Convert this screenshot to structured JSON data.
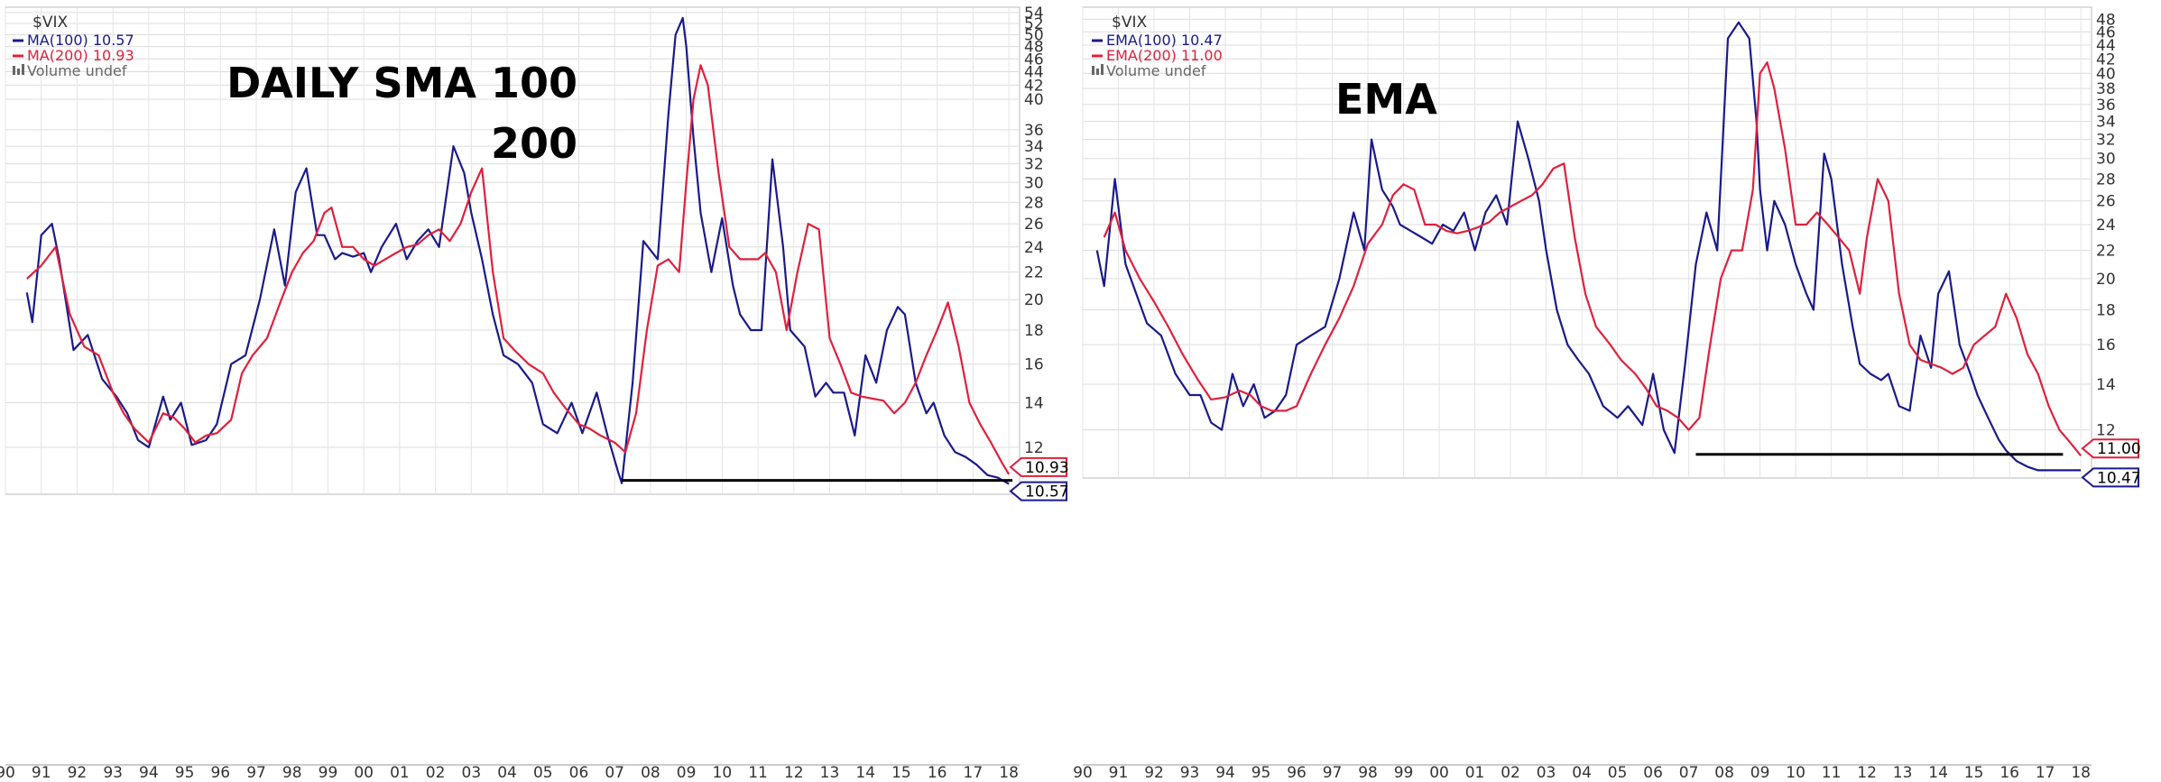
{
  "charts": [
    {
      "symbol": "$VIX",
      "legend": [
        {
          "label": "MA(100) 10.57",
          "color": "#1a1a8c"
        },
        {
          "label": "MA(200) 10.93",
          "color": "#e0203c"
        },
        {
          "label": "Volume undef",
          "color": "#666666"
        }
      ],
      "annotation_lines": [
        "DAILY SMA 100",
        "200"
      ],
      "price_tags": [
        {
          "value": 10.93,
          "label": "10.93",
          "color": "#e0203c"
        },
        {
          "value": 10.57,
          "label": "10.57",
          "color": "#1a1a8c"
        }
      ]
    },
    {
      "symbol": "$VIX",
      "legend": [
        {
          "label": "EMA(100) 10.47",
          "color": "#1a1a8c"
        },
        {
          "label": "EMA(200) 11.00",
          "color": "#e0203c"
        },
        {
          "label": "Volume undef",
          "color": "#666666"
        }
      ],
      "annotation_lines": [
        "EMA"
      ],
      "price_tags": [
        {
          "value": 11.0,
          "label": "11.00",
          "color": "#e0203c"
        },
        {
          "value": 10.47,
          "label": "10.47",
          "color": "#1a1a8c"
        }
      ]
    }
  ],
  "chart_data": [
    {
      "type": "line",
      "title": "$VIX",
      "yscale": "log",
      "ylim": [
        10.2,
        55
      ],
      "xlim": [
        90,
        118.3
      ],
      "xticks": [
        "90",
        "91",
        "92",
        "93",
        "94",
        "95",
        "96",
        "97",
        "98",
        "99",
        "00",
        "01",
        "02",
        "03",
        "04",
        "05",
        "06",
        "07",
        "08",
        "09",
        "10",
        "11",
        "12",
        "13",
        "14",
        "15",
        "16",
        "17",
        "18"
      ],
      "yticks": [
        12,
        14,
        16,
        18,
        20,
        22,
        24,
        26,
        28,
        30,
        32,
        34,
        36,
        40,
        42,
        44,
        46,
        48,
        50,
        52,
        54
      ],
      "grid": true,
      "support_line": {
        "from": 107.2,
        "to": 118.1,
        "value": 10.7
      },
      "series": [
        {
          "name": "MA(100)",
          "color": "#1a1a8c",
          "x": [
            90.6,
            90.75,
            91.0,
            91.3,
            91.5,
            91.9,
            92.3,
            92.7,
            93.1,
            93.4,
            93.7,
            94.0,
            94.4,
            94.6,
            94.9,
            95.2,
            95.6,
            95.9,
            96.3,
            96.7,
            97.1,
            97.5,
            97.8,
            98.1,
            98.4,
            98.7,
            98.9,
            99.2,
            99.4,
            99.7,
            100.0,
            100.2,
            100.5,
            100.9,
            101.2,
            101.5,
            101.8,
            102.1,
            102.5,
            102.8,
            103.0,
            103.3,
            103.6,
            103.9,
            104.3,
            104.7,
            105.0,
            105.4,
            105.8,
            106.1,
            106.5,
            106.8,
            107.1,
            107.2,
            107.5,
            107.8,
            108.2,
            108.5,
            108.7,
            108.9,
            109.0,
            109.2,
            109.4,
            109.7,
            110.0,
            110.3,
            110.5,
            110.8,
            111.1,
            111.4,
            111.7,
            111.9,
            112.3,
            112.6,
            112.9,
            113.1,
            113.4,
            113.7,
            114.0,
            114.3,
            114.6,
            114.9,
            115.1,
            115.4,
            115.7,
            115.9,
            116.2,
            116.5,
            116.8,
            117.1,
            117.4,
            117.7,
            118.0
          ],
          "values": [
            20.5,
            18.5,
            25,
            26,
            23,
            16.8,
            17.7,
            15.2,
            14.3,
            13.5,
            12.3,
            12,
            14.3,
            13.2,
            14,
            12.1,
            12.3,
            13,
            16,
            16.5,
            20,
            25.5,
            21,
            29,
            31.5,
            25,
            25,
            23,
            23.5,
            23.2,
            23.5,
            22,
            24,
            26,
            23,
            24.5,
            25.5,
            24,
            34,
            31,
            27,
            23,
            19,
            16.5,
            16,
            15,
            13,
            12.6,
            14,
            12.6,
            14.5,
            12.5,
            11,
            10.6,
            15,
            24.5,
            23,
            38,
            50,
            53,
            48,
            35,
            27,
            22,
            26.5,
            21,
            19,
            18,
            18,
            32.5,
            24,
            18,
            17,
            14.3,
            15,
            14.5,
            14.5,
            12.5,
            16.5,
            15,
            18,
            19.5,
            19,
            15,
            13.5,
            14,
            12.5,
            11.8,
            11.6,
            11.3,
            10.9,
            10.8,
            10.57
          ]
        },
        {
          "name": "MA(200)",
          "color": "#e0203c",
          "x": [
            90.6,
            91.0,
            91.4,
            91.8,
            92.2,
            92.6,
            93.0,
            93.3,
            93.6,
            94.0,
            94.4,
            94.7,
            95.0,
            95.3,
            95.6,
            95.9,
            96.3,
            96.6,
            96.9,
            97.3,
            97.7,
            98.0,
            98.3,
            98.6,
            98.9,
            99.1,
            99.4,
            99.7,
            100.0,
            100.3,
            100.6,
            100.9,
            101.2,
            101.5,
            101.8,
            102.1,
            102.4,
            102.7,
            103.0,
            103.3,
            103.6,
            103.9,
            104.2,
            104.6,
            105.0,
            105.3,
            105.6,
            106.0,
            106.3,
            106.6,
            107.0,
            107.3,
            107.6,
            107.9,
            108.2,
            108.5,
            108.8,
            109.0,
            109.2,
            109.4,
            109.6,
            109.9,
            110.2,
            110.5,
            110.8,
            111.0,
            111.2,
            111.5,
            111.8,
            112.1,
            112.4,
            112.7,
            113.0,
            113.3,
            113.6,
            113.9,
            114.2,
            114.5,
            114.8,
            115.1,
            115.4,
            115.7,
            116.0,
            116.3,
            116.6,
            116.9,
            117.2,
            117.5,
            117.8,
            118.0
          ],
          "values": [
            21.5,
            22.5,
            24,
            19,
            17,
            16.5,
            14.5,
            13.5,
            12.8,
            12.2,
            13.5,
            13.3,
            12.8,
            12.2,
            12.5,
            12.6,
            13.2,
            15.5,
            16.5,
            17.5,
            20,
            22,
            23.5,
            24.5,
            27,
            27.5,
            24,
            24,
            23,
            22.5,
            23,
            23.5,
            24,
            24.2,
            25,
            25.5,
            24.5,
            26,
            29,
            31.5,
            22,
            17.5,
            16.8,
            16,
            15.5,
            14.5,
            13.8,
            13,
            12.8,
            12.5,
            12.2,
            11.8,
            13.5,
            18,
            22.5,
            23,
            22,
            30,
            40,
            45,
            42,
            31,
            24,
            23,
            23,
            23,
            23.5,
            22,
            18,
            22,
            26,
            25.5,
            17.5,
            16,
            14.5,
            14.3,
            14.2,
            14.1,
            13.5,
            14,
            15,
            16.5,
            18,
            19.8,
            17,
            14,
            13,
            12.2,
            11.4,
            10.93
          ]
        }
      ]
    },
    {
      "type": "line",
      "title": "$VIX",
      "yscale": "log",
      "ylim": [
        10.2,
        50
      ],
      "xlim": [
        90,
        118.3
      ],
      "xticks": [
        "90",
        "91",
        "92",
        "93",
        "94",
        "95",
        "96",
        "97",
        "98",
        "99",
        "00",
        "01",
        "02",
        "03",
        "04",
        "05",
        "06",
        "07",
        "08",
        "09",
        "10",
        "11",
        "12",
        "13",
        "14",
        "15",
        "16",
        "17",
        "18"
      ],
      "yticks": [
        12,
        14,
        16,
        18,
        20,
        22,
        24,
        26,
        28,
        30,
        32,
        34,
        36,
        38,
        40,
        42,
        44,
        46,
        48
      ],
      "grid": true,
      "support_line": {
        "from": 107.2,
        "to": 117.5,
        "value": 11.05
      },
      "series": [
        {
          "name": "EMA(100)",
          "color": "#1a1a8c",
          "x": [
            90.4,
            90.6,
            90.9,
            91.2,
            91.5,
            91.8,
            92.2,
            92.6,
            93.0,
            93.3,
            93.6,
            93.9,
            94.2,
            94.5,
            94.8,
            95.1,
            95.4,
            95.7,
            96.0,
            96.4,
            96.8,
            97.2,
            97.6,
            97.9,
            98.1,
            98.4,
            98.7,
            98.9,
            99.2,
            99.5,
            99.8,
            100.1,
            100.4,
            100.7,
            101.0,
            101.3,
            101.6,
            101.9,
            102.2,
            102.5,
            102.8,
            103.0,
            103.3,
            103.6,
            103.9,
            104.2,
            104.6,
            105.0,
            105.3,
            105.7,
            106.0,
            106.3,
            106.6,
            106.9,
            107.2,
            107.5,
            107.8,
            108.1,
            108.4,
            108.7,
            108.9,
            109.0,
            109.2,
            109.4,
            109.7,
            110.0,
            110.3,
            110.5,
            110.8,
            111.0,
            111.3,
            111.6,
            111.8,
            112.1,
            112.4,
            112.6,
            112.9,
            113.2,
            113.5,
            113.8,
            114.0,
            114.3,
            114.6,
            114.9,
            115.1,
            115.4,
            115.7,
            115.9,
            116.2,
            116.5,
            116.8,
            117.0,
            117.3,
            117.6,
            118.0
          ],
          "values": [
            22,
            19.5,
            28,
            21,
            19,
            17.2,
            16.5,
            14.5,
            13.5,
            13.5,
            12.3,
            12,
            14.5,
            13,
            14,
            12.5,
            12.8,
            13.5,
            16,
            16.5,
            17,
            20,
            25,
            22,
            32,
            27,
            25.5,
            24,
            23.5,
            23,
            22.5,
            24,
            23.5,
            25,
            22,
            25,
            26.5,
            24,
            34,
            30,
            26,
            22,
            18,
            16,
            15.2,
            14.5,
            13,
            12.5,
            13,
            12.2,
            14.5,
            12,
            11.1,
            15,
            21,
            25,
            22,
            45,
            47.5,
            45,
            34,
            27,
            22,
            26,
            24,
            21,
            19,
            18,
            30.5,
            28,
            21,
            17,
            15,
            14.5,
            14.2,
            14.5,
            13,
            12.8,
            16.5,
            14.8,
            19,
            20.5,
            16,
            14.5,
            13.5,
            12.5,
            11.6,
            11.2,
            10.8,
            10.6,
            10.47,
            10.47,
            10.47,
            10.47,
            10.47
          ]
        },
        {
          "name": "EMA(200)",
          "color": "#e0203c",
          "x": [
            90.6,
            90.9,
            91.2,
            91.6,
            92.0,
            92.4,
            92.8,
            93.2,
            93.6,
            94.0,
            94.4,
            94.7,
            95.0,
            95.3,
            95.7,
            96.0,
            96.4,
            96.8,
            97.2,
            97.6,
            98.0,
            98.4,
            98.7,
            99.0,
            99.3,
            99.6,
            99.9,
            100.2,
            100.5,
            100.8,
            101.1,
            101.4,
            101.7,
            102.0,
            102.3,
            102.6,
            102.9,
            103.2,
            103.5,
            103.8,
            104.1,
            104.4,
            104.8,
            105.1,
            105.5,
            105.8,
            106.1,
            106.4,
            106.7,
            107.0,
            107.3,
            107.6,
            107.9,
            108.2,
            108.5,
            108.8,
            109.0,
            109.2,
            109.4,
            109.7,
            110.0,
            110.3,
            110.6,
            110.9,
            111.2,
            111.5,
            111.8,
            112.0,
            112.3,
            112.6,
            112.9,
            113.2,
            113.5,
            113.8,
            114.1,
            114.4,
            114.7,
            115.0,
            115.3,
            115.6,
            115.9,
            116.2,
            116.5,
            116.8,
            117.1,
            117.4,
            117.7,
            118.0
          ],
          "values": [
            23,
            25,
            22,
            20,
            18.5,
            17,
            15.5,
            14.3,
            13.3,
            13.4,
            13.7,
            13.5,
            13,
            12.8,
            12.8,
            13,
            14.5,
            16,
            17.5,
            19.5,
            22.5,
            24,
            26.5,
            27.5,
            27,
            24,
            24,
            23.5,
            23.3,
            23.5,
            23.8,
            24.2,
            25,
            25.5,
            26,
            26.5,
            27.5,
            29,
            29.5,
            23,
            19,
            17,
            16,
            15.2,
            14.5,
            13.8,
            13,
            12.8,
            12.5,
            12,
            12.5,
            16,
            20,
            22,
            22,
            27,
            40,
            41.5,
            38,
            31,
            24,
            24,
            25,
            24,
            23,
            22,
            19,
            23,
            28,
            26,
            19,
            16,
            15.2,
            15,
            14.8,
            14.5,
            14.8,
            16,
            16.5,
            17,
            19,
            17.5,
            15.5,
            14.5,
            13,
            12,
            11.5,
            11.0
          ]
        }
      ]
    }
  ]
}
